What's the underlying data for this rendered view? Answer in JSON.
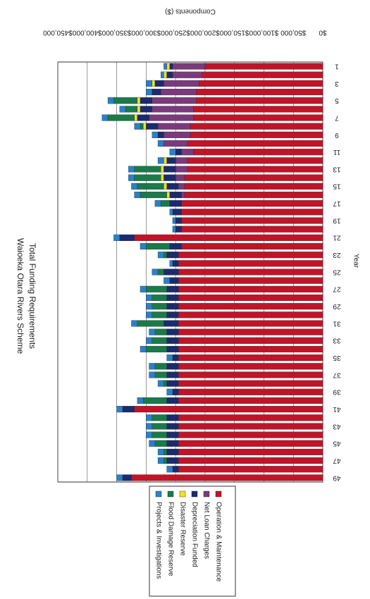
{
  "chart_data": {
    "type": "stacked-bar",
    "title": "Waioeka Otara Rivers Scheme",
    "subtitle": "Total Funding Requirements",
    "x_label": "Year",
    "y_label": "Components ($)",
    "categories": [
      1,
      null,
      3,
      null,
      5,
      null,
      7,
      null,
      9,
      null,
      11,
      null,
      13,
      null,
      15,
      null,
      17,
      null,
      19,
      null,
      21,
      null,
      23,
      null,
      25,
      null,
      27,
      null,
      29,
      null,
      31,
      null,
      33,
      null,
      35,
      null,
      37,
      null,
      39,
      null,
      41,
      null,
      43,
      null,
      45,
      null,
      47,
      null,
      49
    ],
    "ylim": [
      0,
      450000
    ],
    "yticks": [
      {
        "value": 0,
        "label": "$0"
      },
      {
        "value": 50000,
        "label": "$50,000"
      },
      {
        "value": 100000,
        "label": "$100,000"
      },
      {
        "value": 150000,
        "label": "$150,000"
      },
      {
        "value": 200000,
        "label": "$200,000"
      },
      {
        "value": 250000,
        "label": "$250,000"
      },
      {
        "value": 300000,
        "label": "$300,000"
      },
      {
        "value": 350000,
        "label": "$350,000"
      },
      {
        "value": 400000,
        "label": "$400,000"
      },
      {
        "value": 450000,
        "label": "$450,000"
      }
    ],
    "grid": true,
    "series": [
      {
        "name": "Operation & Maintenance",
        "color": "#c01428",
        "values": [
          200000,
          205000,
          210000,
          215000,
          215000,
          220000,
          220000,
          225000,
          225000,
          230000,
          220000,
          230000,
          230000,
          235000,
          235000,
          235000,
          240000,
          240000,
          240000,
          240000,
          320000,
          240000,
          245000,
          245000,
          245000,
          245000,
          245000,
          245000,
          245000,
          245000,
          245000,
          245000,
          245000,
          245000,
          245000,
          245000,
          245000,
          245000,
          245000,
          245000,
          320000,
          245000,
          245000,
          245000,
          245000,
          245000,
          245000,
          245000,
          325000
        ]
      },
      {
        "name": "Net Loan Charges",
        "color": "#7a3a7c",
        "values": [
          55000,
          50000,
          60000,
          60000,
          75000,
          70000,
          75000,
          55000,
          45000,
          40000,
          20000,
          20000,
          20000,
          15000,
          10000,
          5000,
          0,
          0,
          0,
          0,
          0,
          0,
          0,
          0,
          0,
          0,
          0,
          0,
          0,
          0,
          0,
          0,
          0,
          0,
          0,
          0,
          0,
          0,
          0,
          0,
          0,
          0,
          0,
          0,
          0,
          0,
          0,
          0,
          0
        ]
      },
      {
        "name": "Depreciation Funded",
        "color": "#1c2a6e",
        "values": [
          5000,
          10000,
          15000,
          15000,
          20000,
          20000,
          20000,
          20000,
          10000,
          0,
          10000,
          15000,
          20000,
          20000,
          20000,
          20000,
          20000,
          15000,
          10000,
          10000,
          25000,
          20000,
          20000,
          10000,
          25000,
          15000,
          20000,
          20000,
          20000,
          20000,
          25000,
          20000,
          20000,
          20000,
          10000,
          20000,
          20000,
          20000,
          10000,
          20000,
          20000,
          20000,
          20000,
          20000,
          20000,
          20000,
          20000,
          10000,
          15000
        ]
      },
      {
        "name": "Disaster Reserve",
        "color": "#f0e020",
        "values": [
          5000,
          5000,
          5000,
          0,
          5000,
          5000,
          5000,
          5000,
          0,
          0,
          0,
          5000,
          5000,
          5000,
          5000,
          5000,
          0,
          0,
          0,
          0,
          0,
          0,
          0,
          0,
          0,
          0,
          0,
          0,
          0,
          0,
          0,
          0,
          0,
          0,
          0,
          0,
          0,
          0,
          0,
          0,
          0,
          0,
          0,
          0,
          0,
          0,
          0,
          0,
          0
        ]
      },
      {
        "name": "Flood Damage Reserve",
        "color": "#1a7a4a",
        "values": [
          0,
          0,
          0,
          0,
          40000,
          20000,
          45000,
          5000,
          0,
          0,
          0,
          0,
          45000,
          45000,
          45000,
          45000,
          15000,
          0,
          0,
          0,
          0,
          40000,
          5000,
          0,
          10000,
          0,
          35000,
          25000,
          25000,
          25000,
          45000,
          20000,
          25000,
          35000,
          0,
          20000,
          20000,
          5000,
          0,
          40000,
          0,
          25000,
          25000,
          25000,
          20000,
          5000,
          5000,
          0,
          0
        ]
      },
      {
        "name": "Projects & Investigations",
        "color": "#2a80c8",
        "values": [
          5000,
          5000,
          10000,
          10000,
          10000,
          10000,
          10000,
          10000,
          10000,
          10000,
          10000,
          10000,
          10000,
          10000,
          10000,
          10000,
          10000,
          5000,
          5000,
          5000,
          10000,
          10000,
          10000,
          5000,
          10000,
          10000,
          10000,
          10000,
          10000,
          10000,
          10000,
          10000,
          10000,
          10000,
          10000,
          10000,
          10000,
          10000,
          10000,
          10000,
          10000,
          10000,
          10000,
          10000,
          10000,
          10000,
          10000,
          10000,
          10000
        ]
      }
    ]
  }
}
